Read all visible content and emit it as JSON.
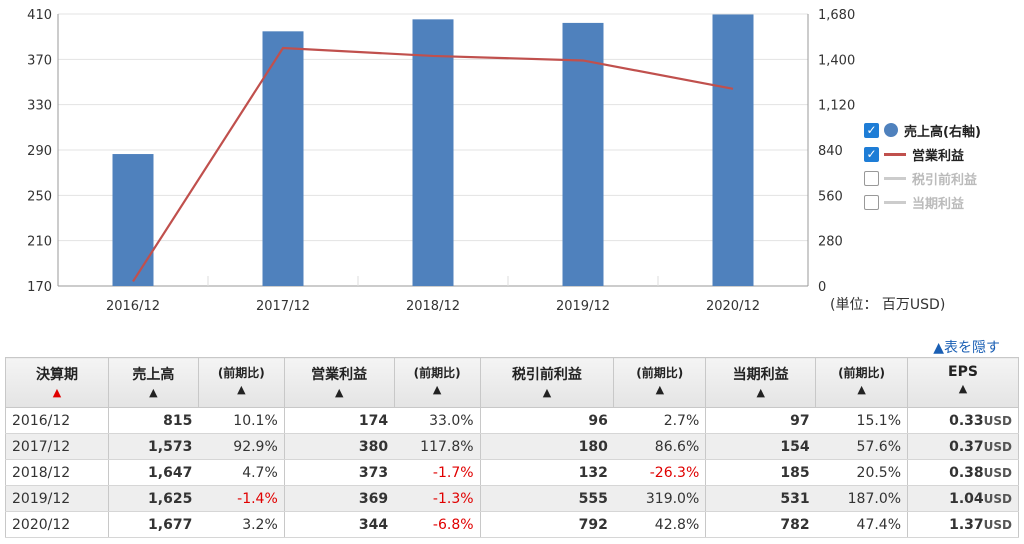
{
  "chart_data": {
    "type": "bar",
    "categories": [
      "2016/12",
      "2017/12",
      "2018/12",
      "2019/12",
      "2020/12"
    ],
    "series": [
      {
        "name": "売上高(右軸)",
        "kind": "bar",
        "axis": "right",
        "values": [
          815,
          1573,
          1647,
          1625,
          1677
        ],
        "color": "#4f81bd"
      },
      {
        "name": "営業利益",
        "kind": "line",
        "axis": "left",
        "values": [
          174,
          380,
          373,
          369,
          344
        ],
        "color": "#c0504d"
      }
    ],
    "left_axis": {
      "min": 170,
      "max": 410,
      "ticks": [
        "170",
        "210",
        "250",
        "290",
        "330",
        "370",
        "410"
      ]
    },
    "right_axis": {
      "min": 0,
      "max": 1680,
      "ticks": [
        "0",
        "280",
        "560",
        "840",
        "1,120",
        "1,400",
        "1,680"
      ]
    },
    "unit_label": "(単位： 百万USD)"
  },
  "legend": [
    {
      "label": "売上高(右軸)",
      "checked": true,
      "swatch": "dot",
      "color": "#4f81bd"
    },
    {
      "label": "営業利益",
      "checked": true,
      "swatch": "line",
      "color": "#c0504d"
    },
    {
      "label": "税引前利益",
      "checked": false,
      "swatch": "line",
      "color": "#cccccc"
    },
    {
      "label": "当期利益",
      "checked": false,
      "swatch": "line",
      "color": "#cccccc"
    }
  ],
  "hide_link": "▲表を隠す",
  "table": {
    "headers": [
      "決算期",
      "売上高",
      "(前期比)",
      "営業利益",
      "(前期比)",
      "税引前利益",
      "(前期比)",
      "当期利益",
      "(前期比)",
      "EPS"
    ],
    "sort_arrow": "▲",
    "rows": [
      [
        "2016/12",
        "815",
        "10.1%",
        "174",
        "33.0%",
        "96",
        "2.7%",
        "97",
        "15.1%",
        "0.33"
      ],
      [
        "2017/12",
        "1,573",
        "92.9%",
        "380",
        "117.8%",
        "180",
        "86.6%",
        "154",
        "57.6%",
        "0.37"
      ],
      [
        "2018/12",
        "1,647",
        "4.7%",
        "373",
        "-1.7%",
        "132",
        "-26.3%",
        "185",
        "20.5%",
        "0.38"
      ],
      [
        "2019/12",
        "1,625",
        "-1.4%",
        "369",
        "-1.3%",
        "555",
        "319.0%",
        "531",
        "187.0%",
        "1.04"
      ],
      [
        "2020/12",
        "1,677",
        "3.2%",
        "344",
        "-6.8%",
        "792",
        "42.8%",
        "782",
        "47.4%",
        "1.37"
      ]
    ],
    "eps_unit": "USD"
  }
}
